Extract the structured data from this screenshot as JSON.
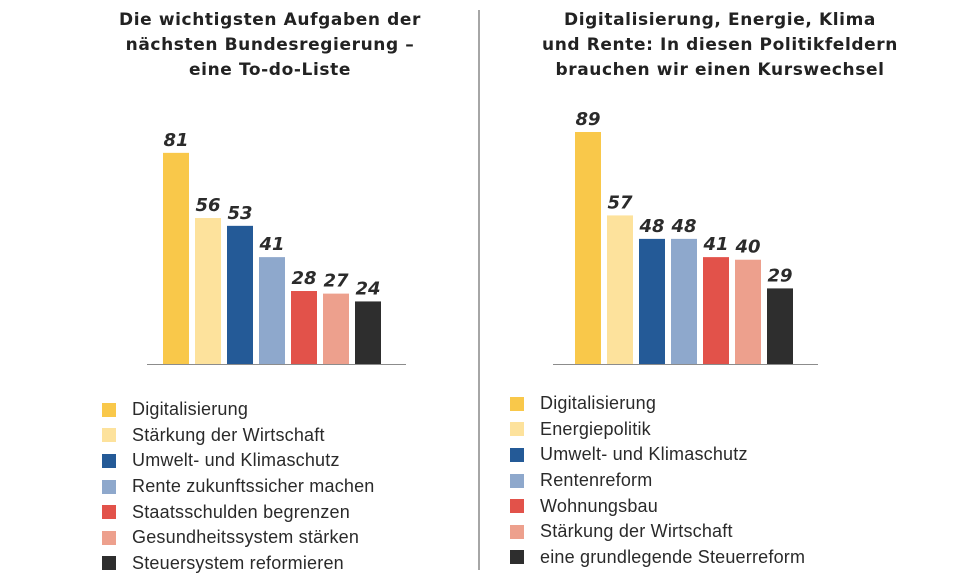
{
  "chart_data": [
    {
      "type": "bar",
      "title_lines": [
        "Die wichtigsten Aufgaben der",
        "nächsten Bundesregierung –",
        "eine To-do-Liste"
      ],
      "categories": [
        "Digitalisierung",
        "Stärkung der Wirtschaft",
        "Umwelt- und Klimaschutz",
        "Rente zukunftssicher machen",
        "Staatsschulden begrenzen",
        "Gesundheitssystem stärken",
        "Steuersystem reformieren"
      ],
      "values": [
        81,
        56,
        53,
        41,
        28,
        27,
        24
      ],
      "colors": [
        "#f9c84a",
        "#fde29c",
        "#245a97",
        "#8ea8cc",
        "#e2524a",
        "#eda08d",
        "#2e2e2e"
      ],
      "ylim": [
        0,
        89
      ],
      "xlabel": "",
      "ylabel": "",
      "grid": false,
      "legend": "bottom"
    },
    {
      "type": "bar",
      "title_lines": [
        "Digitalisierung, Energie, Klima",
        "und Rente: In diesen Politikfeldern",
        "brauchen wir einen Kurswechsel"
      ],
      "categories": [
        "Digitalisierung",
        "Energiepolitik",
        "Umwelt- und Klimaschutz",
        "Rentenreform",
        "Wohnungsbau",
        "Stärkung der Wirtschaft",
        "eine grundlegende Steuerreform"
      ],
      "values": [
        89,
        57,
        48,
        48,
        41,
        40,
        29
      ],
      "colors": [
        "#f9c84a",
        "#fde29c",
        "#245a97",
        "#8ea8cc",
        "#e2524a",
        "#eda08d",
        "#2e2e2e"
      ],
      "ylim": [
        0,
        89
      ],
      "xlabel": "",
      "ylabel": "",
      "grid": false,
      "legend": "bottom"
    }
  ]
}
